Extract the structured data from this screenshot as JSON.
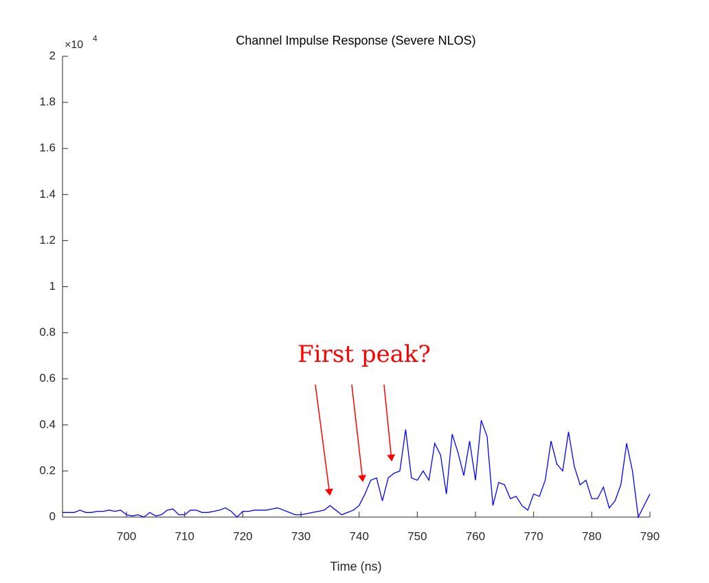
{
  "chart_data": {
    "type": "line",
    "title": "Channel Impulse Response (Severe NLOS)",
    "x_label": "Time (ns)",
    "y_multiplier": {
      "base": "×10",
      "exponent": "4"
    },
    "annotation": "First peak?",
    "xlim": [
      689,
      790
    ],
    "ylim": [
      0,
      2
    ],
    "xticks": [
      700,
      710,
      720,
      730,
      740,
      750,
      760,
      770,
      780,
      790
    ],
    "yticks": [
      0,
      0.2,
      0.4,
      0.6,
      0.8,
      1,
      1.2,
      1.4,
      1.6,
      1.8,
      2
    ],
    "x": [
      689,
      690,
      691,
      692,
      693,
      694,
      695,
      696,
      697,
      698,
      699,
      700,
      701,
      702,
      703,
      704,
      705,
      706,
      707,
      708,
      709,
      710,
      711,
      712,
      713,
      714,
      715,
      716,
      717,
      718,
      719,
      720,
      721,
      722,
      723,
      724,
      725,
      726,
      727,
      728,
      729,
      730,
      731,
      732,
      733,
      734,
      735,
      736,
      737,
      738,
      739,
      740,
      741,
      742,
      743,
      744,
      745,
      746,
      747,
      748,
      749,
      750,
      751,
      752,
      753,
      754,
      755,
      756,
      757,
      758,
      759,
      760,
      761,
      762,
      763,
      764,
      765,
      766,
      767,
      768,
      769,
      770,
      771,
      772,
      773,
      774,
      775,
      776,
      777,
      778,
      779,
      780,
      781,
      782,
      783,
      784,
      785,
      786,
      787,
      788,
      789,
      790
    ],
    "series": [
      {
        "color": "#0000ff",
        "values": [
          0.02,
          0.02,
          0.02,
          0.03,
          0.02,
          0.02,
          0.025,
          0.025,
          0.03,
          0.025,
          0.03,
          0.01,
          0.005,
          0.01,
          0.0,
          0.02,
          0.005,
          0.01,
          0.03,
          0.035,
          0.01,
          0.01,
          0.03,
          0.03,
          0.02,
          0.02,
          0.025,
          0.03,
          0.04,
          0.025,
          0.0,
          0.025,
          0.025,
          0.03,
          0.03,
          0.03,
          0.035,
          0.04,
          0.03,
          0.02,
          0.01,
          0.01,
          0.015,
          0.02,
          0.025,
          0.03,
          0.05,
          0.03,
          0.01,
          0.02,
          0.03,
          0.05,
          0.1,
          0.16,
          0.17,
          0.07,
          0.17,
          0.19,
          0.2,
          0.38,
          0.17,
          0.16,
          0.2,
          0.16,
          0.32,
          0.27,
          0.1,
          0.36,
          0.28,
          0.18,
          0.33,
          0.16,
          0.42,
          0.35,
          0.05,
          0.15,
          0.14,
          0.08,
          0.09,
          0.05,
          0.03,
          0.1,
          0.09,
          0.16,
          0.33,
          0.23,
          0.2,
          0.37,
          0.22,
          0.14,
          0.16,
          0.08,
          0.08,
          0.13,
          0.04,
          0.07,
          0.14,
          0.32,
          0.2,
          0.0,
          0.05,
          0.1
        ]
      }
    ]
  }
}
